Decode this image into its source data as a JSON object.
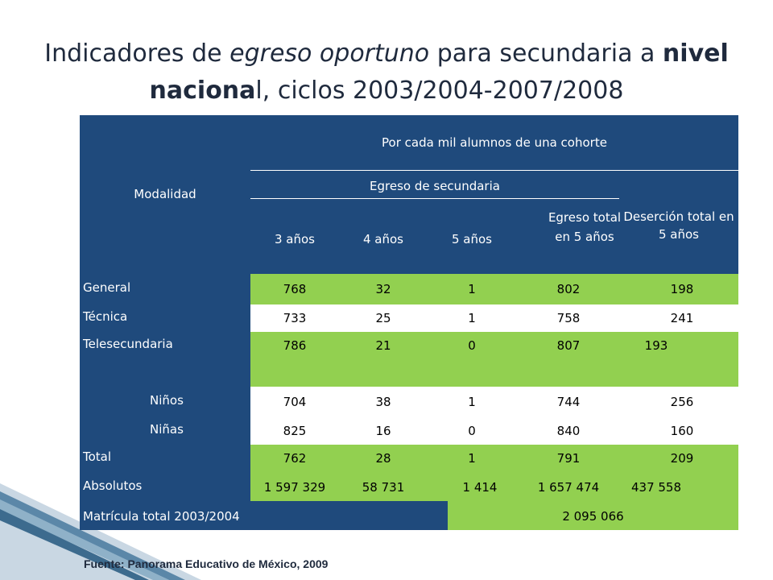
{
  "title": {
    "p1": "Indicadores de ",
    "p2": "egreso oportuno",
    "p3": " para secundaria a ",
    "p4": "nivel",
    "p5": "naciona",
    "p6": "l, ciclos 2003/2004-2007/2008"
  },
  "table": {
    "header_modalidad": "Modalidad",
    "header_cohorte": "Por cada mil alumnos de una cohorte",
    "header_egreso": "Egreso de secundaria",
    "header_desercion": "Deserción total en 5 años",
    "col_3": "3 años",
    "col_4": "4 años",
    "col_5": "5 años",
    "col_total": "Egreso total en 5 años",
    "rows": [
      {
        "label": "General",
        "v": [
          "768",
          "32",
          "1",
          "802",
          "198"
        ]
      },
      {
        "label": "Técnica",
        "v": [
          "733",
          "25",
          "1",
          "758",
          "241"
        ]
      },
      {
        "label": "Telesecundaria",
        "v": [
          "786",
          "21",
          "0",
          "807",
          "193"
        ]
      },
      {
        "label": "Niños",
        "v": [
          "704",
          "38",
          "1",
          "744",
          "256"
        ]
      },
      {
        "label": "Niñas",
        "v": [
          "825",
          "16",
          "0",
          "840",
          "160"
        ]
      },
      {
        "label": "Total",
        "v": [
          "762",
          "28",
          "1",
          "791",
          "209"
        ]
      },
      {
        "label": "Absolutos",
        "v": [
          "1 597 329",
          "58 731",
          "1 414",
          "1 657 474",
          "437 558"
        ]
      }
    ],
    "matricula_label": "Matrícula total 2003/2004",
    "matricula_value": "2 095 066"
  },
  "source": "Fuente: Panorama Educativo de México, 2009"
}
